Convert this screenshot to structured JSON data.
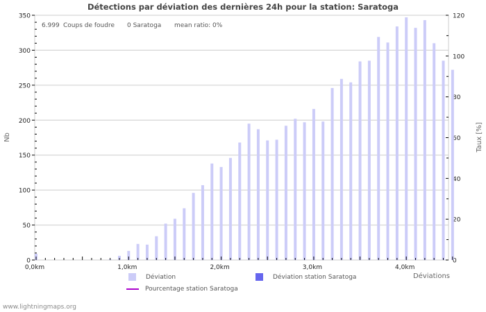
{
  "chart_data": {
    "type": "bar",
    "title": "Détections par déviation des dernières 24h pour la station: Saratoga",
    "annotation": {
      "strikes": "6.999",
      "strikes_label": "Coups de foudre",
      "station_count": "0 Saratoga",
      "mean_ratio": "mean ratio: 0%"
    },
    "xlabel": "Déviations",
    "ylabel": "Nb",
    "y2label": "Taux [%]",
    "ylim": [
      0,
      350
    ],
    "y2lim": [
      0,
      120
    ],
    "yticks": [
      0,
      50,
      100,
      150,
      200,
      250,
      300,
      350
    ],
    "y2ticks": [
      0,
      20,
      40,
      60,
      80,
      100,
      120
    ],
    "xtick_labels": [
      "0,0km",
      "1,0km",
      "2,0km",
      "3,0km",
      "4,0km"
    ],
    "grid": true,
    "legend_position": "bottom",
    "bin_km": 0.1,
    "series": [
      {
        "name": "Déviation",
        "color": "#ccccf8",
        "values": [
          9,
          0,
          0,
          0,
          0,
          0,
          0,
          0,
          1,
          6,
          13,
          23,
          22,
          34,
          52,
          59,
          74,
          96,
          107,
          138,
          133,
          146,
          168,
          195,
          187,
          171,
          172,
          192,
          202,
          197,
          216,
          198,
          246,
          259,
          254,
          284,
          285,
          319,
          311,
          334,
          347,
          332,
          343,
          310,
          285,
          272
        ]
      },
      {
        "name": "Déviation station Saratoga",
        "color": "#6666ee",
        "values": [
          0,
          0,
          0,
          0,
          0,
          0,
          0,
          0,
          0,
          0,
          0,
          0,
          0,
          0,
          0,
          0,
          0,
          0,
          0,
          0,
          0,
          0,
          0,
          0,
          0,
          0,
          0,
          0,
          0,
          0,
          0,
          0,
          0,
          0,
          0,
          0,
          0,
          0,
          0,
          0,
          0,
          0,
          0,
          0,
          0,
          0
        ]
      },
      {
        "name": "Pourcentage station Saratoga",
        "color": "#aa00cc",
        "type": "line",
        "values": []
      }
    ]
  },
  "legend": {
    "deviation": "Déviation",
    "deviation_station": "Déviation station Saratoga",
    "percentage_station": "Pourcentage station Saratoga"
  },
  "footer": "www.lightningmaps.org"
}
